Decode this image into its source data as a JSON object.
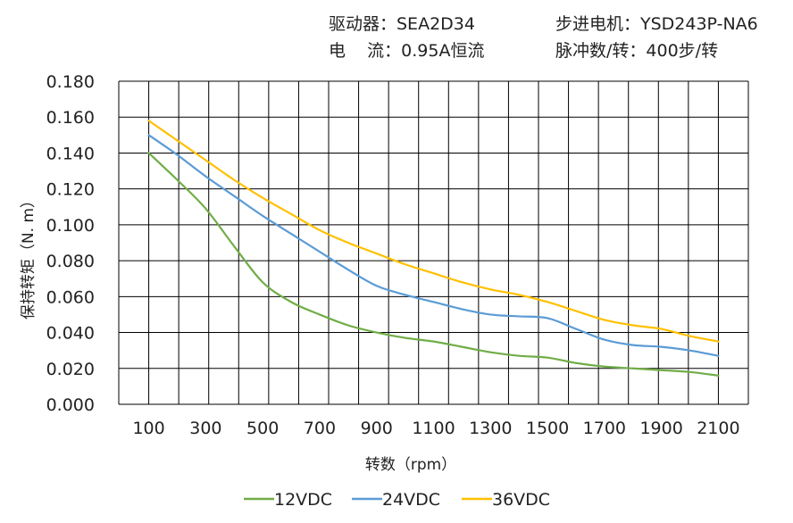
{
  "header": {
    "driver": "驱动器：SEA2D34",
    "motor": "步进电机：YSD243P-NA6",
    "current": "电    流：0.95A恒流",
    "pulses": "脉冲数/转：400步/转"
  },
  "chart_data": {
    "type": "line",
    "title": "",
    "xlabel": "转数（rpm）",
    "ylabel": "保持转矩（N. m）",
    "x": [
      100,
      200,
      300,
      400,
      500,
      600,
      700,
      800,
      900,
      1000,
      1100,
      1200,
      1300,
      1400,
      1500,
      1600,
      1700,
      1800,
      1900,
      2000,
      2100
    ],
    "x_tick_labels": [
      "100",
      "300",
      "500",
      "700",
      "900",
      "1100",
      "1300",
      "1500",
      "1700",
      "1900",
      "2100"
    ],
    "y_tick_labels": [
      "0.000",
      "0.020",
      "0.040",
      "0.060",
      "0.080",
      "0.100",
      "0.120",
      "0.140",
      "0.160",
      "0.180"
    ],
    "ylim": [
      0,
      0.18
    ],
    "grid": true,
    "legend_position": "bottom",
    "series": [
      {
        "name": "12VDC",
        "color": "#70AD47",
        "values": [
          0.14,
          0.125,
          0.109,
          0.088,
          0.068,
          0.057,
          0.05,
          0.044,
          0.04,
          0.037,
          0.035,
          0.032,
          0.029,
          0.027,
          0.026,
          0.023,
          0.021,
          0.02,
          0.019,
          0.018,
          0.016
        ]
      },
      {
        "name": "24VDC",
        "color": "#5B9BD5",
        "values": [
          0.15,
          0.139,
          0.127,
          0.116,
          0.105,
          0.095,
          0.085,
          0.075,
          0.066,
          0.061,
          0.057,
          0.053,
          0.05,
          0.049,
          0.048,
          0.042,
          0.036,
          0.033,
          0.032,
          0.03,
          0.027
        ]
      },
      {
        "name": "36VDC",
        "color": "#FFC000",
        "values": [
          0.158,
          0.147,
          0.136,
          0.125,
          0.115,
          0.106,
          0.097,
          0.09,
          0.084,
          0.078,
          0.073,
          0.068,
          0.064,
          0.061,
          0.057,
          0.052,
          0.047,
          0.044,
          0.042,
          0.038,
          0.035
        ]
      }
    ]
  }
}
